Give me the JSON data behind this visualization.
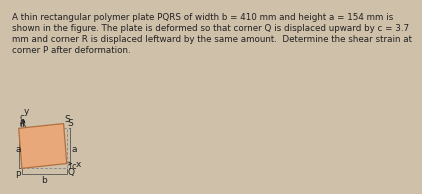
{
  "text_lines": [
    "A thin rectangular polymer plate PQRS of width b = 410 mm and height a = 154 mm is",
    "shown in the figure. The plate is deformed so that corner Q is displaced upward by c = 3.7",
    "mm and corner R is displaced leftward by the same amount.  Determine the shear strain at",
    "corner P after deformation."
  ],
  "bg_color": "#cfc0aa",
  "plate_fill": "#e8a87a",
  "plate_edge": "#b07040",
  "dashed_color": "#888888",
  "dim_color": "#444444",
  "text_color": "#222222",
  "font_size": 6.8,
  "label_fs": 6.5,
  "corners": {
    "P": "P",
    "Q": "Q",
    "R": "R",
    "S": "S"
  },
  "b_label": "b",
  "a_label": "a",
  "c_label": "c",
  "x_label": "x",
  "y_label": "y"
}
